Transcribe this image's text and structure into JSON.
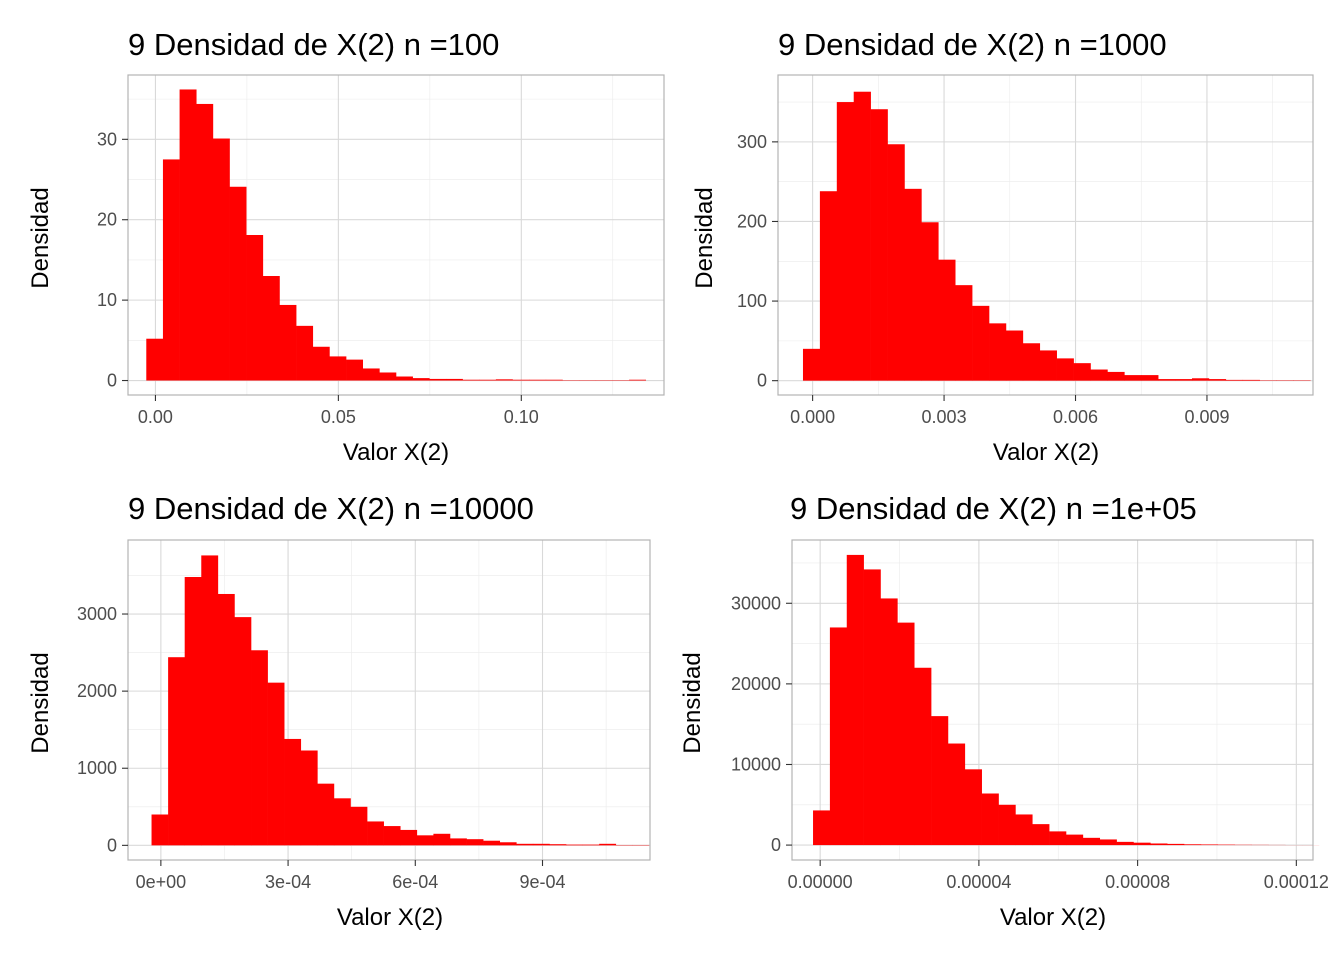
{
  "bar_color": "#FF0000",
  "chart_data": [
    {
      "type": "bar",
      "title": "9 Densidad de X(2) n =100",
      "xlabel": "Valor X(2)",
      "ylabel": "Densidad",
      "xlim": [
        -0.0075,
        0.139
      ],
      "ylim": [
        -1.8,
        38
      ],
      "bin_start": -0.0025,
      "bin_width": 0.00455,
      "values": [
        5.2,
        27.5,
        36.2,
        34.4,
        30.1,
        24.1,
        18.1,
        13.0,
        9.4,
        6.8,
        4.2,
        3.0,
        2.6,
        1.5,
        1.0,
        0.5,
        0.3,
        0.2,
        0.2,
        0.1,
        0.1,
        0.15,
        0.1,
        0.1,
        0.1,
        0.05,
        0.05,
        0.05,
        0.05,
        0.1
      ],
      "xticks": [
        0.0,
        0.05,
        0.1
      ],
      "xtick_labels": [
        "0.00",
        "0.05",
        "0.10"
      ],
      "xminor": [
        -0.025,
        0.025,
        0.075,
        0.125
      ],
      "yticks": [
        0,
        10,
        20,
        30
      ],
      "ytick_labels": [
        "0",
        "10",
        "20",
        "30"
      ],
      "yminor": [
        5,
        15,
        25,
        35
      ]
    },
    {
      "type": "bar",
      "title": "9 Densidad de X(2) n =1000",
      "xlabel": "Valor X(2)",
      "ylabel": "Densidad",
      "xlim": [
        -0.00079,
        0.01142
      ],
      "ylim": [
        -18,
        384
      ],
      "bin_start": -0.00022,
      "bin_width": 0.000386,
      "values": [
        40,
        238,
        350,
        363,
        341,
        297,
        241,
        199,
        152,
        120,
        94,
        72,
        63,
        47,
        38,
        28,
        22,
        14,
        11,
        7,
        7,
        2,
        2,
        3,
        2,
        1,
        1,
        0.5,
        0.5,
        0.5
      ],
      "xticks": [
        0.0,
        0.003,
        0.006,
        0.009
      ],
      "xtick_labels": [
        "0.000",
        "0.003",
        "0.006",
        "0.009"
      ],
      "xminor": [
        0.0015,
        0.0045,
        0.0075,
        0.0105
      ],
      "yticks": [
        0,
        100,
        200,
        300
      ],
      "ytick_labels": [
        "0",
        "100",
        "200",
        "300"
      ],
      "yminor": [
        50,
        150,
        250,
        350
      ]
    },
    {
      "type": "bar",
      "title": "9 Densidad de X(2) n =10000",
      "xlabel": "Valor X(2)",
      "ylabel": "Densidad",
      "xlim": [
        -7.75e-05,
        0.0011535
      ],
      "ylim": [
        -190,
        3960
      ],
      "bin_start": -2.2e-05,
      "bin_width": 3.91e-05,
      "values": [
        400,
        2440,
        3480,
        3760,
        3260,
        2960,
        2530,
        2110,
        1380,
        1230,
        800,
        610,
        500,
        310,
        250,
        200,
        130,
        150,
        90,
        80,
        60,
        40,
        20,
        20,
        15,
        10,
        10,
        20,
        5,
        5
      ],
      "xticks": [
        0.0,
        0.0003,
        0.0006,
        0.0009
      ],
      "xtick_labels": [
        "0e+00",
        "3e-04",
        "6e-04",
        "9e-04"
      ],
      "xminor": [
        0.00015,
        0.00045,
        0.00075,
        0.00105
      ],
      "yticks": [
        0,
        1000,
        2000,
        3000
      ],
      "ytick_labels": [
        "0",
        "1000",
        "2000",
        "3000"
      ],
      "yminor": [
        500,
        1500,
        2500,
        3500
      ]
    },
    {
      "type": "bar",
      "title": "9 Densidad de X(2) n =1e+05",
      "xlabel": "Valor X(2)",
      "ylabel": "Densidad",
      "xlim": [
        -7.1e-06,
        0.0001242
      ],
      "ylim": [
        -1850,
        37850
      ],
      "bin_start": -1.8e-06,
      "bin_width": 4.25e-06,
      "values": [
        4300,
        27000,
        36000,
        34200,
        30600,
        27600,
        22000,
        16000,
        12600,
        9400,
        6400,
        5000,
        3800,
        2600,
        1700,
        1300,
        900,
        700,
        400,
        300,
        200,
        150,
        100,
        80,
        60,
        40,
        30,
        20,
        10,
        10
      ],
      "xticks": [
        0.0,
        4e-05,
        8e-05,
        0.00012
      ],
      "xtick_labels": [
        "0.00000",
        "0.00004",
        "0.00008",
        "0.00012"
      ],
      "xminor": [
        2e-05,
        6e-05,
        0.0001
      ],
      "yticks": [
        0,
        10000,
        20000,
        30000
      ],
      "ytick_labels": [
        "0",
        "10000",
        "20000",
        "30000"
      ],
      "yminor": [
        5000,
        15000,
        25000,
        35000
      ]
    }
  ]
}
